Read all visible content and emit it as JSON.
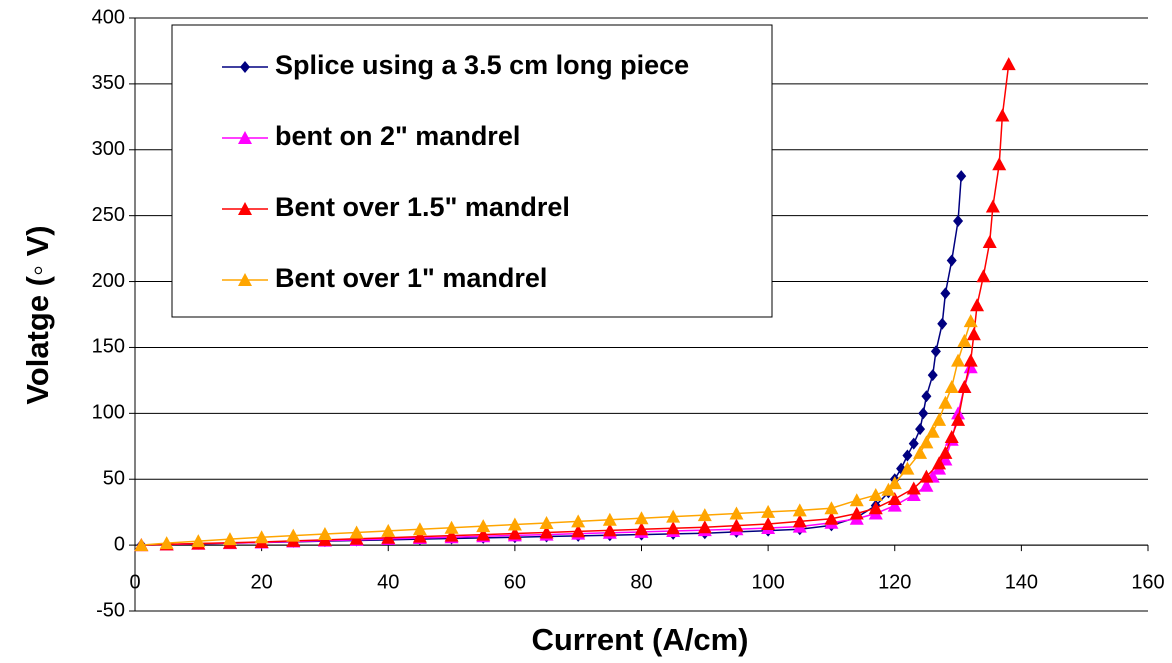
{
  "chart_data": {
    "type": "line",
    "xlabel": "Current (A/cm)",
    "ylabel": "Volatge (◦ V)",
    "xlim": [
      0,
      160
    ],
    "xticks": [
      0,
      20,
      40,
      60,
      80,
      100,
      120,
      140,
      160
    ],
    "ylim": [
      -50,
      400
    ],
    "yticks": [
      -50,
      0,
      50,
      100,
      150,
      200,
      250,
      300,
      350,
      400
    ],
    "grid": true,
    "series": [
      {
        "name": "Splice using a 3.5 cm long piece",
        "color": "#000080",
        "marker": "diamond",
        "x": [
          1,
          5,
          10,
          15,
          20,
          25,
          30,
          35,
          40,
          45,
          50,
          55,
          60,
          65,
          70,
          75,
          80,
          85,
          90,
          95,
          100,
          105,
          110,
          114,
          117,
          119,
          120,
          121,
          122,
          123,
          124,
          124.5,
          125,
          126,
          126.5,
          127.5,
          128,
          129,
          130,
          130.5
        ],
        "values": [
          0,
          0.5,
          1,
          1.5,
          2,
          2.5,
          3,
          3.5,
          4,
          4.5,
          5,
          5.5,
          6,
          6.5,
          7,
          7.5,
          8,
          8.5,
          9,
          10,
          11,
          12,
          15,
          21,
          30,
          40,
          50,
          58,
          68,
          77,
          88,
          100,
          113,
          129,
          147,
          168,
          191,
          216,
          246,
          280
        ]
      },
      {
        "name": "bent on 2\" mandrel",
        "color": "#ff00ff",
        "marker": "triangle",
        "x": [
          1,
          5,
          10,
          15,
          20,
          25,
          30,
          35,
          40,
          45,
          50,
          55,
          60,
          65,
          70,
          75,
          80,
          85,
          90,
          95,
          100,
          105,
          110,
          114,
          117,
          120,
          123,
          125,
          126,
          127,
          128,
          129,
          130,
          131,
          132
        ],
        "values": [
          0,
          0.5,
          1,
          1.5,
          2,
          2.7,
          3.4,
          4,
          4.7,
          5.4,
          6,
          6.7,
          7.4,
          8,
          8.7,
          9.4,
          10,
          10.7,
          11.4,
          12,
          13,
          14,
          17,
          20,
          24,
          30,
          38,
          45,
          52,
          58,
          65,
          80,
          100,
          120,
          135
        ]
      },
      {
        "name": "Bent over 1.5\" mandrel",
        "color": "#ff0000",
        "marker": "triangle",
        "x": [
          1,
          5,
          10,
          15,
          20,
          25,
          30,
          35,
          40,
          45,
          50,
          55,
          60,
          65,
          70,
          75,
          80,
          85,
          90,
          95,
          100,
          105,
          110,
          114,
          117,
          120,
          123,
          125,
          127,
          128,
          129,
          130,
          131,
          132,
          132.5,
          133,
          134,
          135,
          135.5,
          136.5,
          137,
          138
        ],
        "values": [
          0,
          0.6,
          1.2,
          1.8,
          2.4,
          3.2,
          4,
          4.8,
          5.6,
          6.4,
          7.2,
          8,
          8.8,
          9.6,
          10.4,
          11.2,
          12,
          12.8,
          13.6,
          14.8,
          16,
          18,
          20,
          24,
          28,
          35,
          43,
          52,
          62,
          70,
          82,
          95,
          120,
          140,
          160,
          182,
          204,
          230,
          257,
          289,
          326,
          365
        ]
      },
      {
        "name": "Bent over 1\" mandrel",
        "color": "#ffa500",
        "marker": "triangle",
        "x": [
          1,
          5,
          10,
          15,
          20,
          25,
          30,
          35,
          40,
          45,
          50,
          55,
          60,
          65,
          70,
          75,
          80,
          85,
          90,
          95,
          100,
          105,
          110,
          114,
          117,
          119,
          120,
          122,
          124,
          125,
          126,
          127,
          128,
          129,
          130,
          131,
          132
        ],
        "values": [
          0,
          1.5,
          3,
          4.5,
          6,
          7.2,
          8.4,
          9.6,
          10.8,
          12,
          13.2,
          14.4,
          15.6,
          16.8,
          18,
          19.2,
          20.4,
          21.6,
          22.8,
          24,
          25.2,
          26.4,
          28,
          34,
          38,
          42,
          47,
          58,
          70,
          78,
          86,
          95,
          108,
          120,
          140,
          155,
          170
        ]
      }
    ]
  }
}
